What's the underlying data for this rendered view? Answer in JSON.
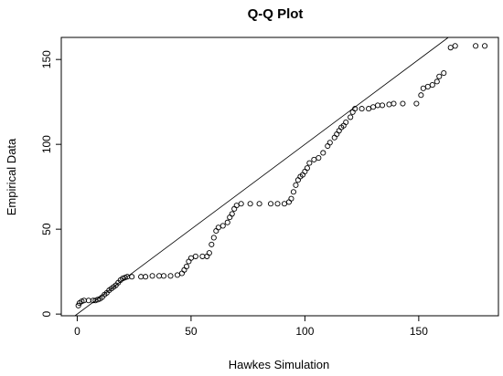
{
  "chart_data": {
    "type": "scatter",
    "title": "Q-Q Plot",
    "xlabel": "Hawkes Simulation",
    "ylabel": "Empirical Data",
    "xlim": [
      -7,
      185
    ],
    "ylim": [
      -1,
      163
    ],
    "xticks": [
      0,
      50,
      100,
      150
    ],
    "yticks": [
      0,
      50,
      100,
      150
    ],
    "xtick_labels": [
      "0",
      "50",
      "100",
      "150"
    ],
    "ytick_labels": [
      "0",
      "50",
      "100",
      "150"
    ],
    "reference_line": {
      "slope": 1,
      "intercept": 0
    },
    "marker": "open-circle",
    "grid": false,
    "legend": "none",
    "points": [
      [
        0.5,
        5
      ],
      [
        1,
        6.5
      ],
      [
        2,
        7.5
      ],
      [
        3,
        8
      ],
      [
        5,
        8
      ],
      [
        7,
        8
      ],
      [
        8,
        8
      ],
      [
        9,
        8.5
      ],
      [
        10,
        9
      ],
      [
        11,
        10
      ],
      [
        12,
        11.5
      ],
      [
        13,
        12.5
      ],
      [
        14,
        14
      ],
      [
        15,
        15
      ],
      [
        16,
        16
      ],
      [
        17,
        17
      ],
      [
        18,
        18.5
      ],
      [
        19,
        20
      ],
      [
        20,
        21
      ],
      [
        21,
        21.5
      ],
      [
        22,
        22
      ],
      [
        24,
        22
      ],
      [
        28,
        22
      ],
      [
        30,
        22
      ],
      [
        33,
        22.5
      ],
      [
        36,
        22.5
      ],
      [
        38,
        22.5
      ],
      [
        41,
        22.5
      ],
      [
        44,
        23
      ],
      [
        46,
        24
      ],
      [
        47,
        26
      ],
      [
        48,
        28
      ],
      [
        49,
        31
      ],
      [
        50,
        33
      ],
      [
        52,
        34
      ],
      [
        55,
        34
      ],
      [
        57,
        34
      ],
      [
        58,
        36
      ],
      [
        59,
        41
      ],
      [
        60,
        45
      ],
      [
        61,
        49
      ],
      [
        62,
        51
      ],
      [
        64,
        52
      ],
      [
        66,
        54
      ],
      [
        67,
        57
      ],
      [
        68,
        59
      ],
      [
        69,
        62
      ],
      [
        70,
        64
      ],
      [
        72,
        65
      ],
      [
        76,
        65
      ],
      [
        80,
        65
      ],
      [
        85,
        65
      ],
      [
        88,
        65
      ],
      [
        91,
        65
      ],
      [
        93,
        66
      ],
      [
        94,
        68
      ],
      [
        95,
        72
      ],
      [
        96,
        76
      ],
      [
        97,
        79
      ],
      [
        98,
        81
      ],
      [
        99,
        82
      ],
      [
        100,
        84
      ],
      [
        101,
        86
      ],
      [
        102,
        89
      ],
      [
        104,
        91
      ],
      [
        106,
        92
      ],
      [
        108,
        95
      ],
      [
        110,
        99
      ],
      [
        111,
        101
      ],
      [
        113,
        104
      ],
      [
        114,
        106
      ],
      [
        115,
        108
      ],
      [
        116,
        110
      ],
      [
        117,
        111
      ],
      [
        118,
        113
      ],
      [
        120,
        116
      ],
      [
        121,
        119
      ],
      [
        122,
        121
      ],
      [
        125,
        121
      ],
      [
        128,
        121
      ],
      [
        130,
        122
      ],
      [
        132,
        123
      ],
      [
        134,
        123
      ],
      [
        137,
        123.5
      ],
      [
        139,
        124
      ],
      [
        143,
        124
      ],
      [
        149,
        124
      ],
      [
        151,
        129
      ],
      [
        152,
        133
      ],
      [
        154,
        134
      ],
      [
        156,
        135
      ],
      [
        158,
        137
      ],
      [
        159,
        140
      ],
      [
        161,
        142
      ],
      [
        164,
        157
      ],
      [
        166,
        158
      ],
      [
        175,
        158
      ],
      [
        179,
        158
      ]
    ]
  }
}
